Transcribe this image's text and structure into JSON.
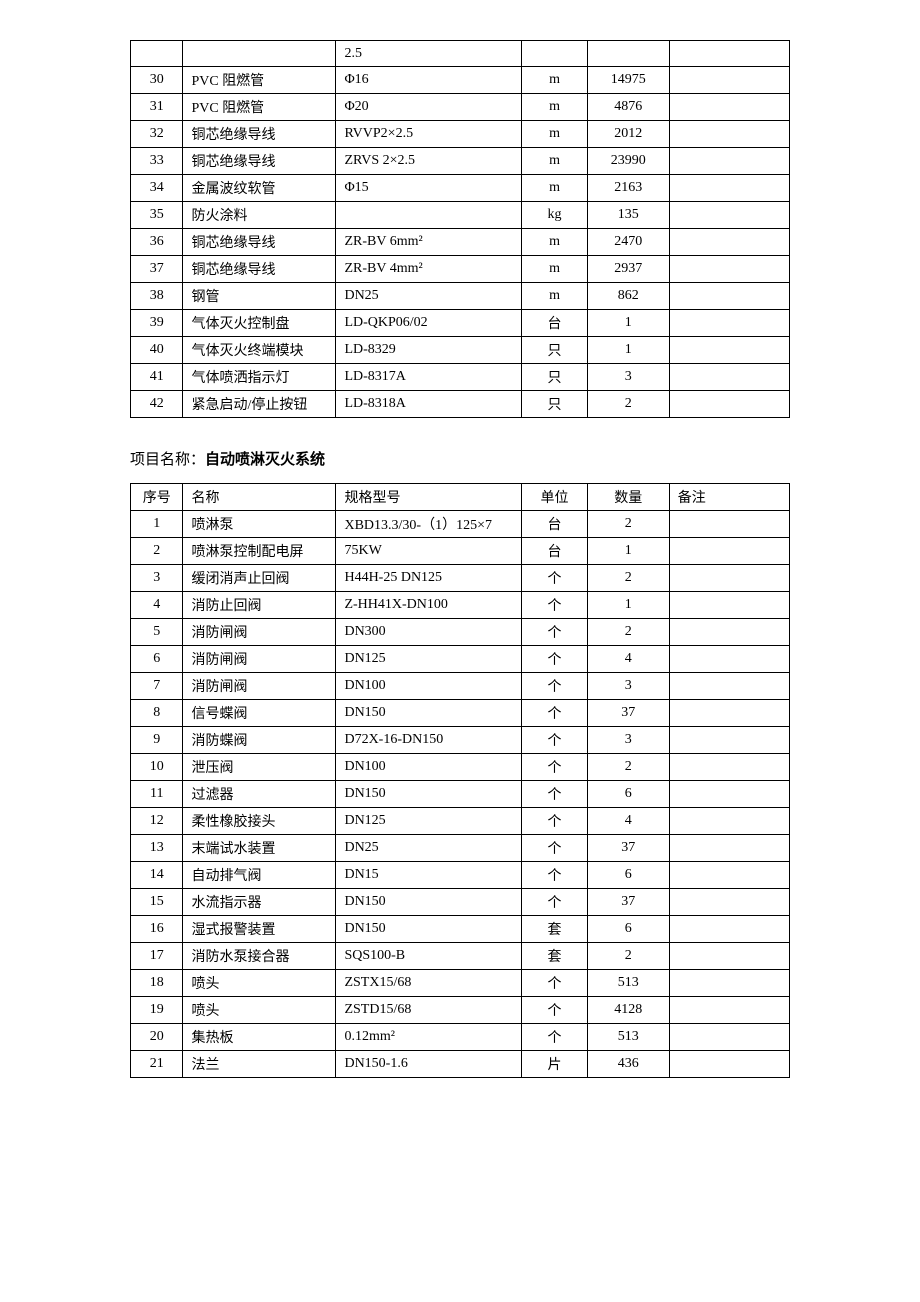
{
  "table1": {
    "rows": [
      {
        "idx": "",
        "name": "",
        "spec": "2.5",
        "unit": "",
        "qty": "",
        "remark": ""
      },
      {
        "idx": "30",
        "name": "PVC 阻燃管",
        "spec": "Φ16",
        "unit": "m",
        "qty": "14975",
        "remark": ""
      },
      {
        "idx": "31",
        "name": "PVC 阻燃管",
        "spec": "Φ20",
        "unit": "m",
        "qty": "4876",
        "remark": ""
      },
      {
        "idx": "32",
        "name": "铜芯绝缘导线",
        "spec": "RVVP2×2.5",
        "unit": "m",
        "qty": "2012",
        "remark": ""
      },
      {
        "idx": "33",
        "name": "铜芯绝缘导线",
        "spec": "ZRVS 2×2.5",
        "unit": "m",
        "qty": "23990",
        "remark": ""
      },
      {
        "idx": "34",
        "name": "金属波纹软管",
        "spec": "Φ15",
        "unit": "m",
        "qty": "2163",
        "remark": ""
      },
      {
        "idx": "35",
        "name": "防火涂料",
        "spec": "",
        "unit": "kg",
        "qty": "135",
        "remark": ""
      },
      {
        "idx": "36",
        "name": "铜芯绝缘导线",
        "spec": "ZR-BV 6mm²",
        "unit": "m",
        "qty": "2470",
        "remark": ""
      },
      {
        "idx": "37",
        "name": "铜芯绝缘导线",
        "spec": "ZR-BV 4mm²",
        "unit": "m",
        "qty": "2937",
        "remark": ""
      },
      {
        "idx": "38",
        "name": "钢管",
        "spec": "DN25",
        "unit": "m",
        "qty": "862",
        "remark": ""
      },
      {
        "idx": "39",
        "name": "气体灭火控制盘",
        "spec": "LD-QKP06/02",
        "unit": "台",
        "qty": "1",
        "remark": ""
      },
      {
        "idx": "40",
        "name": "气体灭火终端模块",
        "spec": "LD-8329",
        "unit": "只",
        "qty": "1",
        "remark": ""
      },
      {
        "idx": "41",
        "name": "气体喷洒指示灯",
        "spec": "LD-8317A",
        "unit": "只",
        "qty": "3",
        "remark": ""
      },
      {
        "idx": "42",
        "name": "紧急启动/停止按钮",
        "spec": "LD-8318A",
        "unit": "只",
        "qty": "2",
        "remark": ""
      }
    ]
  },
  "section2": {
    "label": "项目名称：",
    "title": "自动喷淋灭火系统"
  },
  "table2": {
    "headers": {
      "idx": "序号",
      "name": "名称",
      "spec": "规格型号",
      "unit": "单位",
      "qty": "数量",
      "remark": "备注"
    },
    "rows": [
      {
        "idx": "1",
        "name": "喷淋泵",
        "spec": "XBD13.3/30-（1）125×7",
        "unit": "台",
        "qty": "2",
        "remark": ""
      },
      {
        "idx": "2",
        "name": "喷淋泵控制配电屏",
        "spec": "75KW",
        "unit": "台",
        "qty": "1",
        "remark": ""
      },
      {
        "idx": "3",
        "name": "缓闭消声止回阀",
        "spec": "H44H-25 DN125",
        "unit": "个",
        "qty": "2",
        "remark": ""
      },
      {
        "idx": "4",
        "name": "消防止回阀",
        "spec": "Z-HH41X-DN100",
        "unit": "个",
        "qty": "1",
        "remark": ""
      },
      {
        "idx": "5",
        "name": "消防闸阀",
        "spec": "DN300",
        "unit": "个",
        "qty": "2",
        "remark": ""
      },
      {
        "idx": "6",
        "name": "消防闸阀",
        "spec": "DN125",
        "unit": "个",
        "qty": "4",
        "remark": ""
      },
      {
        "idx": "7",
        "name": "消防闸阀",
        "spec": "DN100",
        "unit": "个",
        "qty": "3",
        "remark": ""
      },
      {
        "idx": "8",
        "name": "信号蝶阀",
        "spec": "DN150",
        "unit": "个",
        "qty": "37",
        "remark": ""
      },
      {
        "idx": "9",
        "name": "消防蝶阀",
        "spec": "D72X-16-DN150",
        "unit": "个",
        "qty": "3",
        "remark": ""
      },
      {
        "idx": "10",
        "name": "泄压阀",
        "spec": "DN100",
        "unit": "个",
        "qty": "2",
        "remark": ""
      },
      {
        "idx": "11",
        "name": "过滤器",
        "spec": "DN150",
        "unit": "个",
        "qty": "6",
        "remark": ""
      },
      {
        "idx": "12",
        "name": "柔性橡胶接头",
        "spec": "DN125",
        "unit": "个",
        "qty": "4",
        "remark": ""
      },
      {
        "idx": "13",
        "name": "末端试水装置",
        "spec": "DN25",
        "unit": "个",
        "qty": "37",
        "remark": ""
      },
      {
        "idx": "14",
        "name": "自动排气阀",
        "spec": "DN15",
        "unit": "个",
        "qty": "6",
        "remark": ""
      },
      {
        "idx": "15",
        "name": "水流指示器",
        "spec": "DN150",
        "unit": "个",
        "qty": "37",
        "remark": ""
      },
      {
        "idx": "16",
        "name": "湿式报警装置",
        "spec": "DN150",
        "unit": "套",
        "qty": "6",
        "remark": ""
      },
      {
        "idx": "17",
        "name": "消防水泵接合器",
        "spec": "SQS100-B",
        "unit": "套",
        "qty": "2",
        "remark": ""
      },
      {
        "idx": "18",
        "name": "喷头",
        "spec": "ZSTX15/68",
        "unit": "个",
        "qty": "513",
        "remark": ""
      },
      {
        "idx": "19",
        "name": "喷头",
        "spec": "ZSTD15/68",
        "unit": "个",
        "qty": "4128",
        "remark": ""
      },
      {
        "idx": "20",
        "name": "集热板",
        "spec": "0.12mm²",
        "unit": "个",
        "qty": "513",
        "remark": ""
      },
      {
        "idx": "21",
        "name": "法兰",
        "spec": "DN150-1.6",
        "unit": "片",
        "qty": "436",
        "remark": ""
      }
    ]
  }
}
